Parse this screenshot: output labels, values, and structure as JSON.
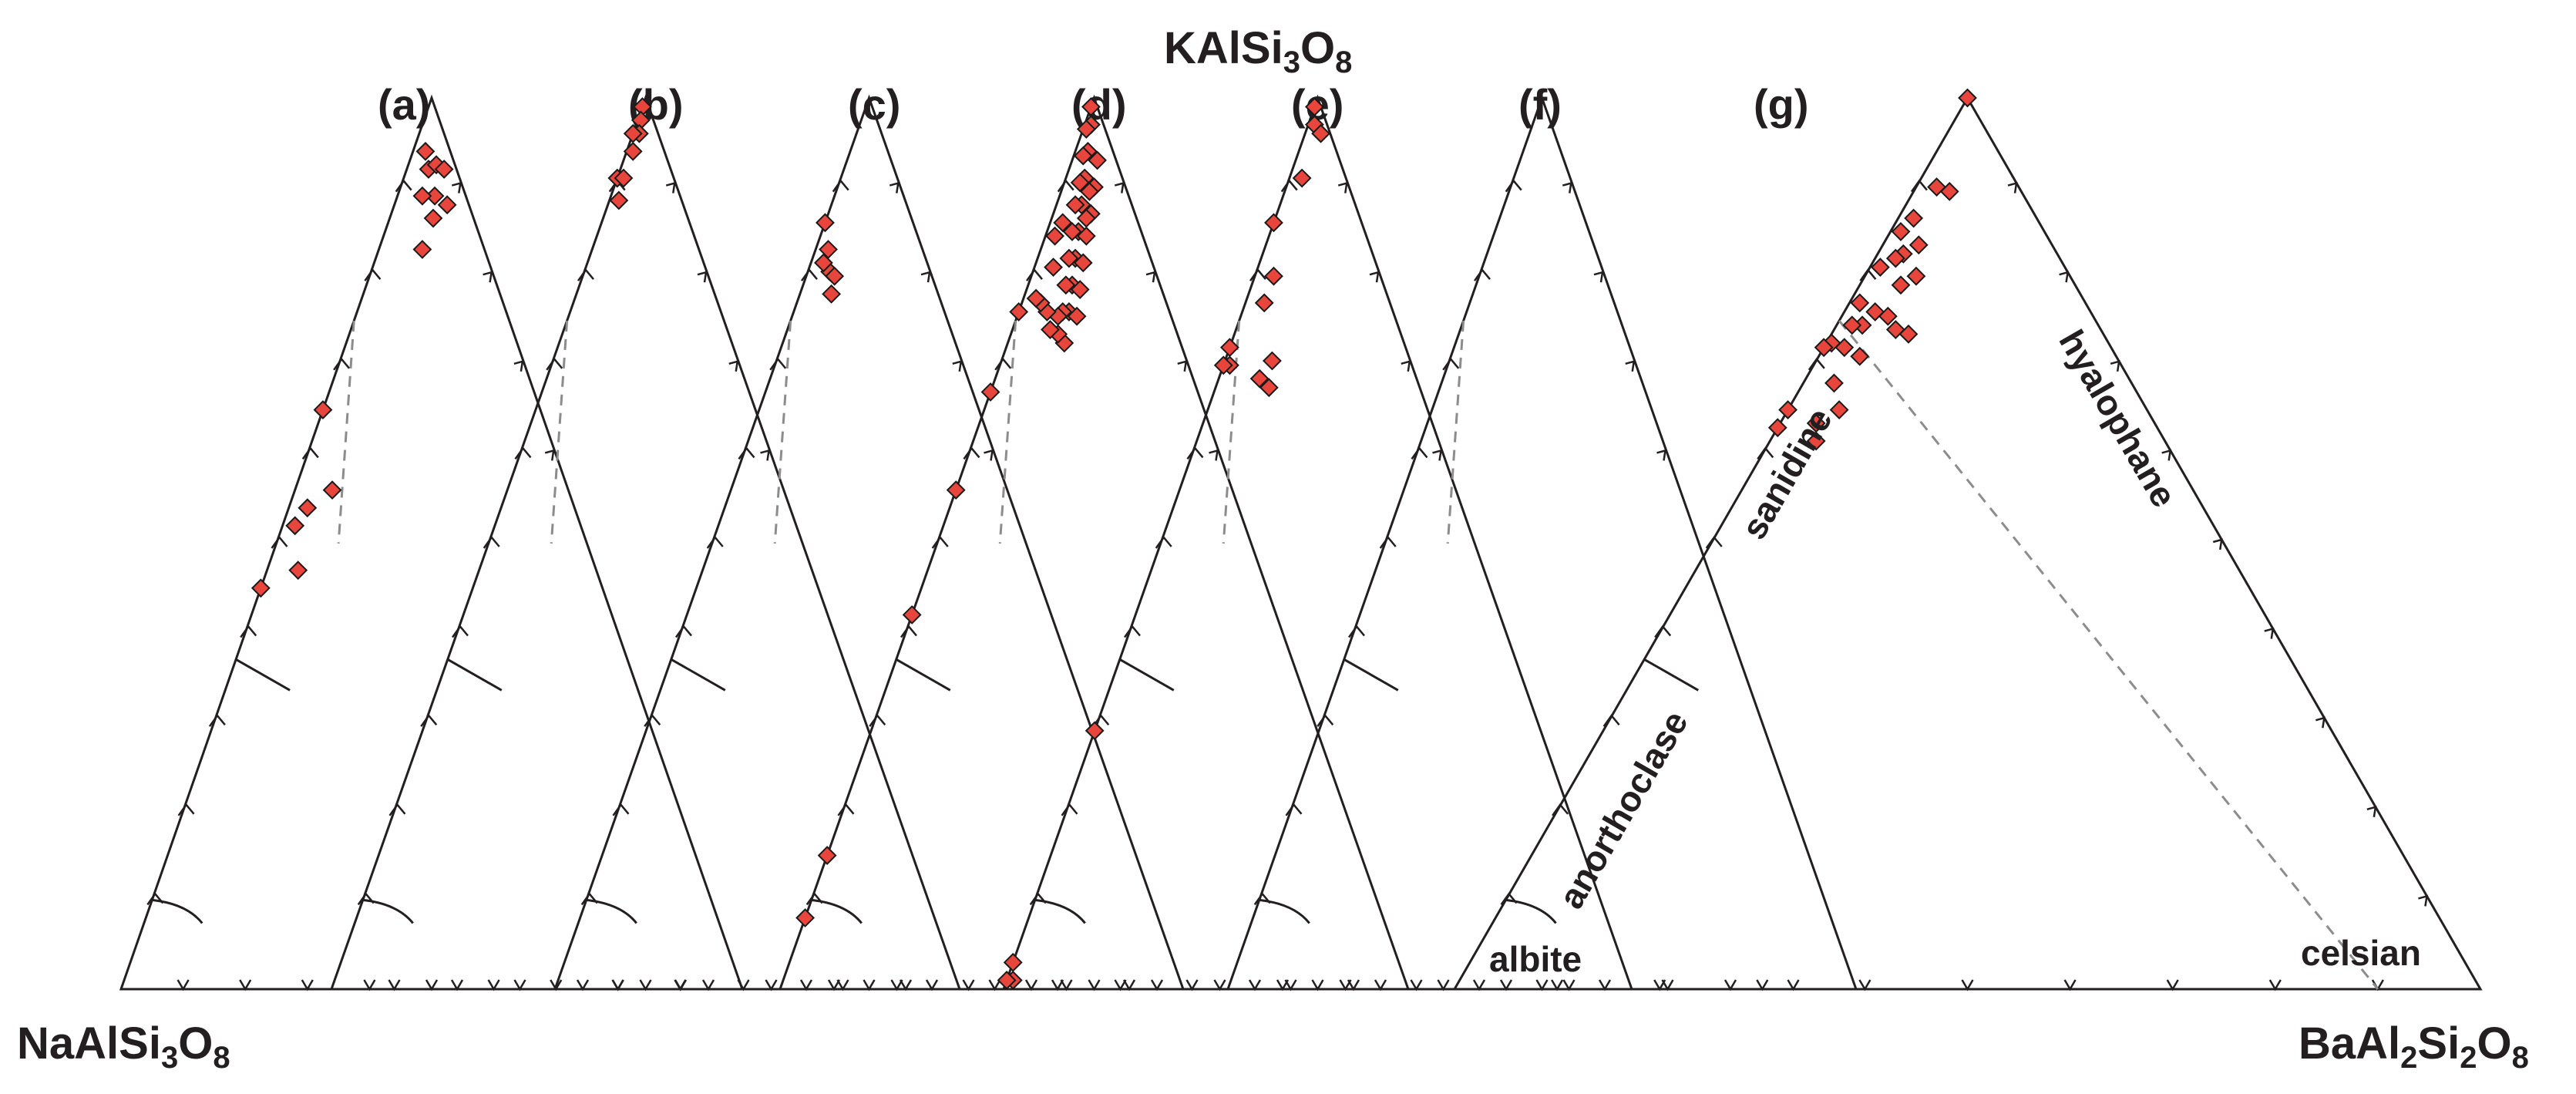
{
  "chart_data": {
    "type": "scatter",
    "subtype": "ternary",
    "apices": {
      "top": {
        "formula": "KAlSi3O8",
        "text": "KAlSi",
        "sub1": "3",
        "mid": "O",
        "sub2": "8"
      },
      "left": {
        "formula": "NaAlSi3O8",
        "text": "NaAlSi",
        "sub1": "3",
        "mid": "O",
        "sub2": "8"
      },
      "right": {
        "formula": "BaAl2Si2O8",
        "text": "BaAl",
        "sub1": "2",
        "mid": "Si",
        "sub2": "2",
        "tail": "O",
        "sub3": "8"
      }
    },
    "field_labels": [
      "albite",
      "anorthoclase",
      "sanidine",
      "hyalophane",
      "celsian"
    ],
    "grid_step": 0.1,
    "marker": {
      "shape": "diamond",
      "color": "#e8463c",
      "edge": "#1a1a1a"
    },
    "panels": [
      {
        "label": "(a)",
        "points": [
          [
            0.04,
            0.02
          ],
          [
            0.045,
            0.035
          ],
          [
            0.03,
            0.045
          ],
          [
            0.05,
            0.06
          ],
          [
            0.07,
            0.04
          ],
          [
            0.065,
            0.07
          ],
          [
            0.02,
            0.06
          ],
          [
            0.035,
            0.085
          ],
          [
            0.1,
            0.07
          ],
          [
            0.35,
            0.0
          ],
          [
            0.38,
            0.06
          ],
          [
            0.43,
            0.03
          ],
          [
            0.46,
            0.02
          ],
          [
            0.48,
            0.05
          ],
          [
            0.55,
            0.0
          ]
        ]
      },
      {
        "label": "(b)",
        "points": [
          [
            0.01,
            0.0
          ],
          [
            0.02,
            0.005
          ],
          [
            0.03,
            0.01
          ],
          [
            0.04,
            0.0
          ],
          [
            0.05,
            0.01
          ],
          [
            0.09,
            0.0
          ],
          [
            0.1,
            0.015
          ],
          [
            0.08,
            0.01
          ]
        ]
      },
      {
        "label": "(c)",
        "points": [
          [
            0.14,
            0.0
          ],
          [
            0.15,
            0.02
          ],
          [
            0.16,
            0.035
          ],
          [
            0.17,
            0.05
          ],
          [
            0.165,
            0.02
          ],
          [
            0.155,
            0.045
          ]
        ]
      },
      {
        "label": "(d)",
        "points": [
          [
            0.01,
            0.0
          ],
          [
            0.02,
            0.01
          ],
          [
            0.03,
            0.005
          ],
          [
            0.04,
            0.02
          ],
          [
            0.05,
            0.015
          ],
          [
            0.06,
            0.03
          ],
          [
            0.07,
            0.025
          ],
          [
            0.08,
            0.04
          ],
          [
            0.09,
            0.03
          ],
          [
            0.1,
            0.05
          ],
          [
            0.11,
            0.04
          ],
          [
            0.12,
            0.06
          ],
          [
            0.13,
            0.05
          ],
          [
            0.14,
            0.07
          ],
          [
            0.15,
            0.06
          ],
          [
            0.16,
            0.08
          ],
          [
            0.17,
            0.07
          ],
          [
            0.18,
            0.065
          ],
          [
            0.185,
            0.09
          ],
          [
            0.19,
            0.075
          ],
          [
            0.2,
            0.06
          ],
          [
            0.195,
            0.045
          ],
          [
            0.2,
            0.03
          ],
          [
            0.205,
            0.02
          ],
          [
            0.05,
            0.05
          ],
          [
            0.07,
            0.06
          ],
          [
            0.09,
            0.065
          ],
          [
            0.11,
            0.075
          ],
          [
            0.13,
            0.085
          ],
          [
            0.15,
            0.095
          ],
          [
            0.03,
            0.04
          ],
          [
            0.06,
            0.045
          ],
          [
            0.08,
            0.055
          ],
          [
            0.12,
            0.02
          ],
          [
            0.14,
            0.015
          ],
          [
            0.16,
            0.03
          ],
          [
            0.24,
            0.0
          ],
          [
            0.33,
            0.0
          ],
          [
            0.44,
            0.0
          ],
          [
            0.58,
            0.0
          ],
          [
            0.85,
            0.0
          ],
          [
            0.92,
            0.0
          ]
        ]
      },
      {
        "label": "(e)",
        "points": [
          [
            0.01,
            0.0
          ],
          [
            0.02,
            0.01
          ],
          [
            0.015,
            0.025
          ],
          [
            0.07,
            0.02
          ],
          [
            0.14,
            0.0
          ],
          [
            0.17,
            0.03
          ],
          [
            0.2,
            0.03
          ],
          [
            0.22,
            0.075
          ],
          [
            0.24,
            0.085
          ],
          [
            0.25,
            0.065
          ],
          [
            0.28,
            0.0
          ],
          [
            0.29,
            0.01
          ],
          [
            0.3,
            0.0
          ],
          [
            0.71,
            0.0
          ],
          [
            0.97,
            0.0
          ],
          [
            0.98,
            0.01
          ],
          [
            0.99,
            0.0
          ]
        ]
      },
      {
        "label": "(f)",
        "points": []
      },
      {
        "label": "(g)",
        "points": [
          [
            0.0,
            0.0
          ],
          [
            0.07,
            0.035
          ],
          [
            0.08,
            0.02
          ],
          [
            0.12,
            0.015
          ],
          [
            0.13,
            0.035
          ],
          [
            0.14,
            0.01
          ],
          [
            0.15,
            0.025
          ],
          [
            0.16,
            0.02
          ],
          [
            0.17,
            0.04
          ],
          [
            0.18,
            0.01
          ],
          [
            0.19,
            0.075
          ],
          [
            0.2,
            0.045
          ],
          [
            0.21,
            0.03
          ],
          [
            0.22,
            0.01
          ],
          [
            0.23,
            0.025
          ],
          [
            0.24,
            0.015
          ],
          [
            0.25,
            0.04
          ],
          [
            0.26,
            0.02
          ],
          [
            0.27,
            0.005
          ],
          [
            0.2,
            0.06
          ],
          [
            0.15,
            0.05
          ],
          [
            0.28,
            0.0
          ],
          [
            0.29,
            0.03
          ],
          [
            0.3,
            0.05
          ],
          [
            0.33,
            0.035
          ],
          [
            0.34,
            0.045
          ],
          [
            0.35,
            0.0
          ],
          [
            0.37,
            0.0
          ]
        ]
      }
    ],
    "boundaries": {
      "albite_anorthoclase": {
        "K": 0.1,
        "style": "solid"
      },
      "anorthoclase_sanidine": {
        "K": 0.37,
        "style": "solid"
      },
      "sanidine_hyalophane": {
        "Ba": 0.1,
        "style": "dashed"
      }
    }
  }
}
